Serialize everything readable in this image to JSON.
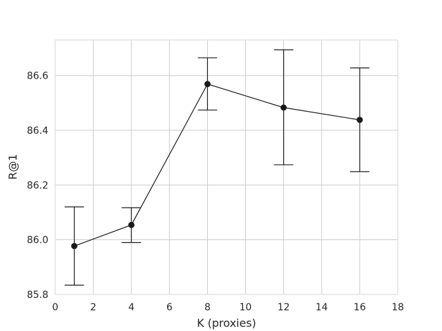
{
  "chart_data": {
    "type": "line",
    "title": "",
    "xlabel": "K (proxies)",
    "ylabel": "R@1",
    "xlim": [
      0,
      18
    ],
    "ylim": [
      85.8,
      86.73
    ],
    "xticks": [
      0,
      2,
      4,
      6,
      8,
      10,
      12,
      14,
      16,
      18
    ],
    "yticks": [
      85.8,
      86.0,
      86.2,
      86.4,
      86.6
    ],
    "ytick_labels": [
      "85.8",
      "86.0",
      "86.2",
      "86.4",
      "86.6"
    ],
    "grid": true,
    "legend": "none",
    "series": [
      {
        "x": [
          1,
          4,
          8,
          12,
          16
        ],
        "y": [
          85.977,
          86.054,
          86.569,
          86.483,
          86.438
        ],
        "err_low": [
          85.834,
          85.99,
          86.474,
          86.274,
          86.249
        ],
        "err_high": [
          86.12,
          86.117,
          86.665,
          86.694,
          86.628
        ],
        "color": "#1a1a1a"
      }
    ],
    "colors": {
      "line": "#1a1a1a",
      "grid": "#cccccc",
      "frame": "#dddddd",
      "text": "#262626"
    }
  }
}
